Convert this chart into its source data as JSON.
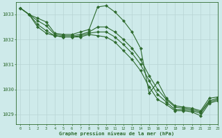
{
  "title": "Graphe pression niveau de la mer (hPa)",
  "background_color": "#ceeaea",
  "grid_color": "#b8d4d4",
  "line_color": "#2d6a2d",
  "marker_color": "#2d6a2d",
  "xlim": [
    -0.5,
    23
  ],
  "ylim": [
    1028.6,
    1033.5
  ],
  "yticks": [
    1029,
    1030,
    1031,
    1032,
    1033
  ],
  "xticks": [
    0,
    1,
    2,
    3,
    4,
    5,
    6,
    7,
    8,
    9,
    10,
    11,
    12,
    13,
    14,
    15,
    16,
    17,
    18,
    19,
    20,
    21,
    22,
    23
  ],
  "series": [
    [
      1033.25,
      1033.0,
      1032.85,
      1032.7,
      1032.25,
      1032.2,
      1032.2,
      1032.3,
      1032.4,
      1033.3,
      1033.35,
      1033.1,
      1032.75,
      1032.3,
      1031.65,
      1029.85,
      1030.3,
      1029.65,
      1029.35,
      1029.3,
      1029.25,
      1029.15,
      1029.65,
      1029.7
    ],
    [
      1033.25,
      1033.0,
      1032.75,
      1032.55,
      1032.2,
      1032.15,
      1032.15,
      1032.2,
      1032.3,
      1032.5,
      1032.5,
      1032.3,
      1032.0,
      1031.65,
      1031.2,
      1030.55,
      1030.0,
      1029.6,
      1029.3,
      1029.25,
      1029.2,
      1029.1,
      1029.55,
      1029.65
    ],
    [
      1033.25,
      1033.0,
      1032.6,
      1032.35,
      1032.15,
      1032.1,
      1032.1,
      1032.15,
      1032.25,
      1032.3,
      1032.3,
      1032.1,
      1031.8,
      1031.45,
      1031.0,
      1030.35,
      1029.8,
      1029.5,
      1029.2,
      1029.2,
      1029.15,
      1029.05,
      1029.5,
      1029.6
    ],
    [
      1033.25,
      1033.0,
      1032.5,
      1032.25,
      1032.15,
      1032.1,
      1032.1,
      1032.1,
      1032.2,
      1032.15,
      1032.1,
      1031.9,
      1031.55,
      1031.2,
      1030.75,
      1030.1,
      1029.6,
      1029.4,
      1029.15,
      1029.15,
      1029.1,
      1028.95,
      1029.45,
      1029.55
    ]
  ]
}
